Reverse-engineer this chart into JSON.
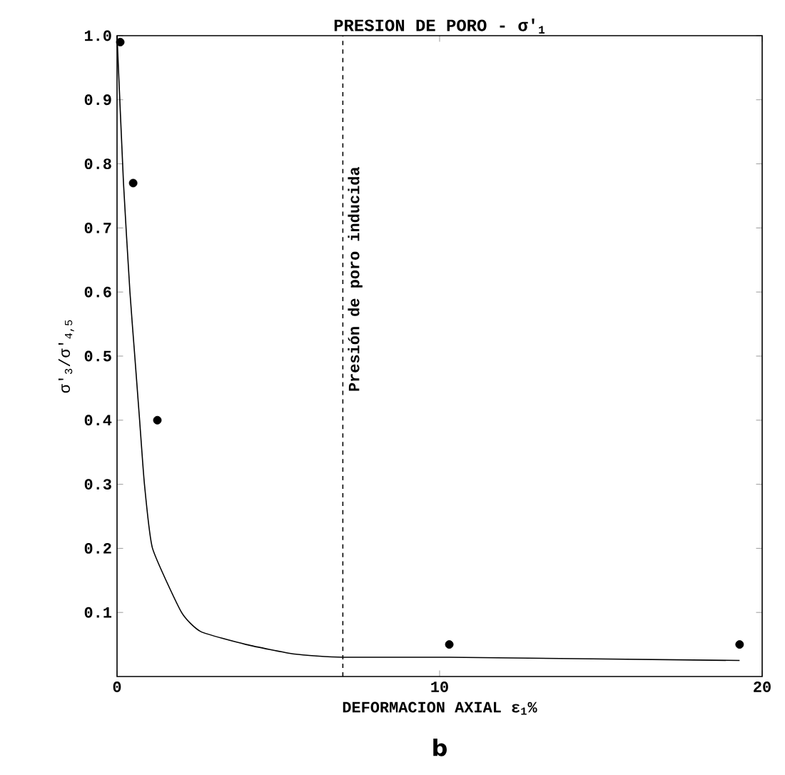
{
  "chart_data": {
    "type": "line",
    "title": "PRESION DE PORO - σ'$_{1}$",
    "xlabel": "DEFORMACION AXIAL ε$_{1}$%",
    "ylabel": "σ'$_{3}$/σ'$_{4,5}$",
    "annotations": [
      "b"
    ],
    "series": [
      {
        "color": "#000000",
        "marker": "none",
        "x": [
          0,
          0.2,
          0.4,
          0.55,
          0.7,
          0.85,
          1.1,
          2.0,
          2.6,
          4.0,
          5.5,
          7,
          10.3,
          19.3
        ],
        "values": [
          1.0,
          0.77,
          0.6,
          0.5,
          0.4,
          0.3,
          0.2,
          0.1,
          0.07,
          0.05,
          0.035,
          0.03,
          0.03,
          0.025
        ]
      },
      {
        "type": "scatter",
        "color": "#000000",
        "marker": "circle",
        "x": [
          0.1,
          0.5,
          1.25,
          10.3,
          19.3
        ],
        "values": [
          0.99,
          0.77,
          0.4,
          0.05,
          0.05
        ]
      }
    ],
    "ref_lines": [
      {
        "axis": "x",
        "value": 7,
        "label": "Presión de poro inducida",
        "line_style": "dashed"
      }
    ],
    "xlim": [
      0,
      20
    ],
    "xticks": [
      0,
      10,
      20
    ],
    "ylim": [
      0,
      1.0
    ],
    "yticks": [
      0.1,
      0.2,
      0.3,
      0.4,
      0.5,
      0.6,
      0.7,
      0.8,
      0.9,
      {
        "value": 1.0,
        "label": "1.0"
      }
    ]
  }
}
